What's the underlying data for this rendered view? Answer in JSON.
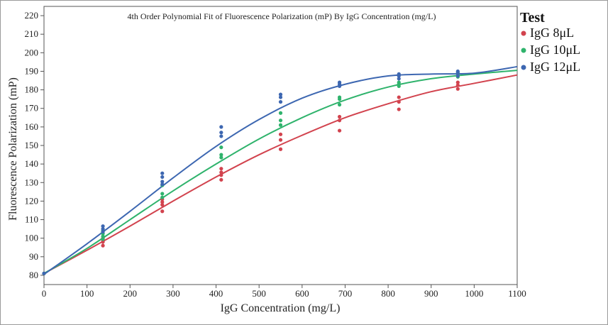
{
  "chart_data": {
    "type": "scatter",
    "title": "4th Order Polynomial Fit of Fluorescence Polarization (mP) By IgG Concentration (mg/L)",
    "xlabel": "IgG Concentration (mg/L)",
    "ylabel": "Fluorescence Polarization (mP)",
    "xlim": [
      0,
      1100
    ],
    "ylim": [
      75,
      225
    ],
    "xticks": [
      0,
      100,
      200,
      300,
      400,
      500,
      600,
      700,
      800,
      900,
      1000,
      1100
    ],
    "yticks": [
      80,
      90,
      100,
      110,
      120,
      130,
      140,
      150,
      160,
      170,
      180,
      190,
      200,
      210,
      220
    ],
    "grid": false,
    "legend": {
      "title": "Test",
      "position": "right"
    },
    "series": [
      {
        "name": "IgG 8μL",
        "color": "#d2434e",
        "points": [
          {
            "x": 0,
            "y": 81
          },
          {
            "x": 137,
            "y": 96
          },
          {
            "x": 137,
            "y": 98
          },
          {
            "x": 137,
            "y": 99
          },
          {
            "x": 137,
            "y": 100
          },
          {
            "x": 275,
            "y": 114.5
          },
          {
            "x": 275,
            "y": 118
          },
          {
            "x": 275,
            "y": 119.5
          },
          {
            "x": 275,
            "y": 121
          },
          {
            "x": 412,
            "y": 131.5
          },
          {
            "x": 412,
            "y": 134
          },
          {
            "x": 412,
            "y": 135.5
          },
          {
            "x": 412,
            "y": 137.5
          },
          {
            "x": 550,
            "y": 148
          },
          {
            "x": 550,
            "y": 153
          },
          {
            "x": 550,
            "y": 156
          },
          {
            "x": 687,
            "y": 158
          },
          {
            "x": 687,
            "y": 163.5
          },
          {
            "x": 687,
            "y": 165.5
          },
          {
            "x": 825,
            "y": 169.5
          },
          {
            "x": 825,
            "y": 173.5
          },
          {
            "x": 825,
            "y": 176
          },
          {
            "x": 962,
            "y": 180.5
          },
          {
            "x": 962,
            "y": 182.5
          },
          {
            "x": 962,
            "y": 184
          }
        ],
        "fit": [
          {
            "x": 0,
            "y": 81
          },
          {
            "x": 100,
            "y": 93.5
          },
          {
            "x": 200,
            "y": 106.5
          },
          {
            "x": 300,
            "y": 120
          },
          {
            "x": 400,
            "y": 133
          },
          {
            "x": 500,
            "y": 145
          },
          {
            "x": 600,
            "y": 155.5
          },
          {
            "x": 700,
            "y": 165
          },
          {
            "x": 800,
            "y": 172.5
          },
          {
            "x": 900,
            "y": 179
          },
          {
            "x": 1000,
            "y": 183.5
          },
          {
            "x": 1100,
            "y": 188
          }
        ]
      },
      {
        "name": "IgG 10μL",
        "color": "#2fb36c",
        "points": [
          {
            "x": 0,
            "y": 81
          },
          {
            "x": 137,
            "y": 99.5
          },
          {
            "x": 137,
            "y": 101
          },
          {
            "x": 137,
            "y": 102.5
          },
          {
            "x": 137,
            "y": 104
          },
          {
            "x": 275,
            "y": 122
          },
          {
            "x": 275,
            "y": 124
          },
          {
            "x": 275,
            "y": 128.5
          },
          {
            "x": 412,
            "y": 143.5
          },
          {
            "x": 412,
            "y": 145
          },
          {
            "x": 412,
            "y": 149
          },
          {
            "x": 550,
            "y": 161
          },
          {
            "x": 550,
            "y": 163.5
          },
          {
            "x": 550,
            "y": 167.5
          },
          {
            "x": 687,
            "y": 172
          },
          {
            "x": 687,
            "y": 175
          },
          {
            "x": 687,
            "y": 176
          },
          {
            "x": 825,
            "y": 182
          },
          {
            "x": 825,
            "y": 183
          },
          {
            "x": 825,
            "y": 184
          },
          {
            "x": 962,
            "y": 187
          },
          {
            "x": 962,
            "y": 188.5
          },
          {
            "x": 962,
            "y": 189.5
          }
        ],
        "fit": [
          {
            "x": 0,
            "y": 81
          },
          {
            "x": 100,
            "y": 94.5
          },
          {
            "x": 200,
            "y": 110
          },
          {
            "x": 300,
            "y": 125.5
          },
          {
            "x": 400,
            "y": 140
          },
          {
            "x": 500,
            "y": 153.5
          },
          {
            "x": 600,
            "y": 165
          },
          {
            "x": 700,
            "y": 174.5
          },
          {
            "x": 800,
            "y": 181.5
          },
          {
            "x": 900,
            "y": 186
          },
          {
            "x": 1000,
            "y": 188.5
          },
          {
            "x": 1100,
            "y": 190.5
          }
        ]
      },
      {
        "name": "IgG 12μL",
        "color": "#3d67b1",
        "points": [
          {
            "x": 0,
            "y": 81
          },
          {
            "x": 137,
            "y": 103.5
          },
          {
            "x": 137,
            "y": 105
          },
          {
            "x": 137,
            "y": 106.5
          },
          {
            "x": 275,
            "y": 129
          },
          {
            "x": 275,
            "y": 130.5
          },
          {
            "x": 275,
            "y": 133
          },
          {
            "x": 275,
            "y": 135
          },
          {
            "x": 412,
            "y": 155
          },
          {
            "x": 412,
            "y": 157
          },
          {
            "x": 412,
            "y": 160
          },
          {
            "x": 550,
            "y": 173.5
          },
          {
            "x": 550,
            "y": 176
          },
          {
            "x": 550,
            "y": 177.5
          },
          {
            "x": 687,
            "y": 182
          },
          {
            "x": 687,
            "y": 183
          },
          {
            "x": 687,
            "y": 184
          },
          {
            "x": 825,
            "y": 186
          },
          {
            "x": 825,
            "y": 187.5
          },
          {
            "x": 825,
            "y": 188.5
          },
          {
            "x": 962,
            "y": 187.5
          },
          {
            "x": 962,
            "y": 189
          },
          {
            "x": 962,
            "y": 190
          }
        ],
        "fit": [
          {
            "x": 0,
            "y": 80.5
          },
          {
            "x": 100,
            "y": 97
          },
          {
            "x": 200,
            "y": 114.5
          },
          {
            "x": 300,
            "y": 132.5
          },
          {
            "x": 400,
            "y": 149.5
          },
          {
            "x": 500,
            "y": 164
          },
          {
            "x": 600,
            "y": 175.5
          },
          {
            "x": 700,
            "y": 183
          },
          {
            "x": 800,
            "y": 187.5
          },
          {
            "x": 900,
            "y": 188.5
          },
          {
            "x": 1000,
            "y": 189
          },
          {
            "x": 1100,
            "y": 192.5
          }
        ]
      }
    ]
  }
}
